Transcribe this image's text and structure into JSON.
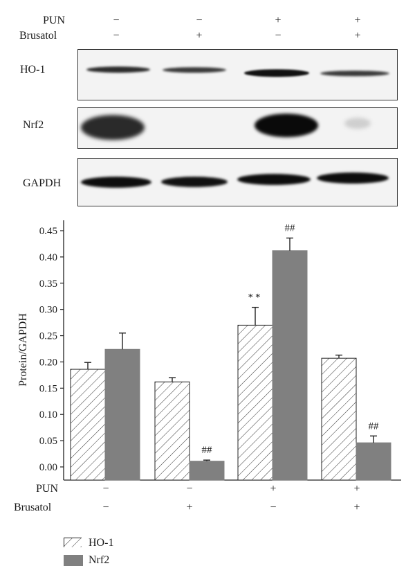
{
  "blot": {
    "conditions": {
      "row1_label": "PUN",
      "row2_label": "Brusatol",
      "pun": [
        "−",
        "−",
        "+",
        "+"
      ],
      "brusatol": [
        "−",
        "+",
        "−",
        "+"
      ]
    },
    "rows": [
      {
        "label": "HO-1"
      },
      {
        "label": "Nrf2"
      },
      {
        "label": "GAPDH"
      }
    ]
  },
  "chart_data": {
    "type": "bar",
    "ylabel": "Protein/GAPDH",
    "ylim": [
      0,
      0.45
    ],
    "yticks": [
      "0.00",
      "0.05",
      "0.10",
      "0.15",
      "0.20",
      "0.25",
      "0.30",
      "0.35",
      "0.40",
      "0.45"
    ],
    "conditions": {
      "row1_label": "PUN",
      "row2_label": "Brusatol",
      "pun": [
        "−",
        "−",
        "+",
        "+"
      ],
      "brusatol": [
        "−",
        "+",
        "−",
        "+"
      ]
    },
    "series": [
      {
        "name": "HO-1",
        "values": [
          0.186,
          0.162,
          0.27,
          0.207
        ],
        "errors": [
          0.013,
          0.008,
          0.034,
          0.006
        ],
        "annotations": [
          "",
          "",
          "**",
          ""
        ],
        "pattern": "hatched"
      },
      {
        "name": "Nrf2",
        "values": [
          0.224,
          0.011,
          0.412,
          0.046
        ],
        "errors": [
          0.031,
          0.002,
          0.024,
          0.013
        ],
        "annotations": [
          "",
          "##",
          "##",
          "##"
        ],
        "color": "#808080"
      }
    ],
    "legend_position": "bottom-left"
  }
}
